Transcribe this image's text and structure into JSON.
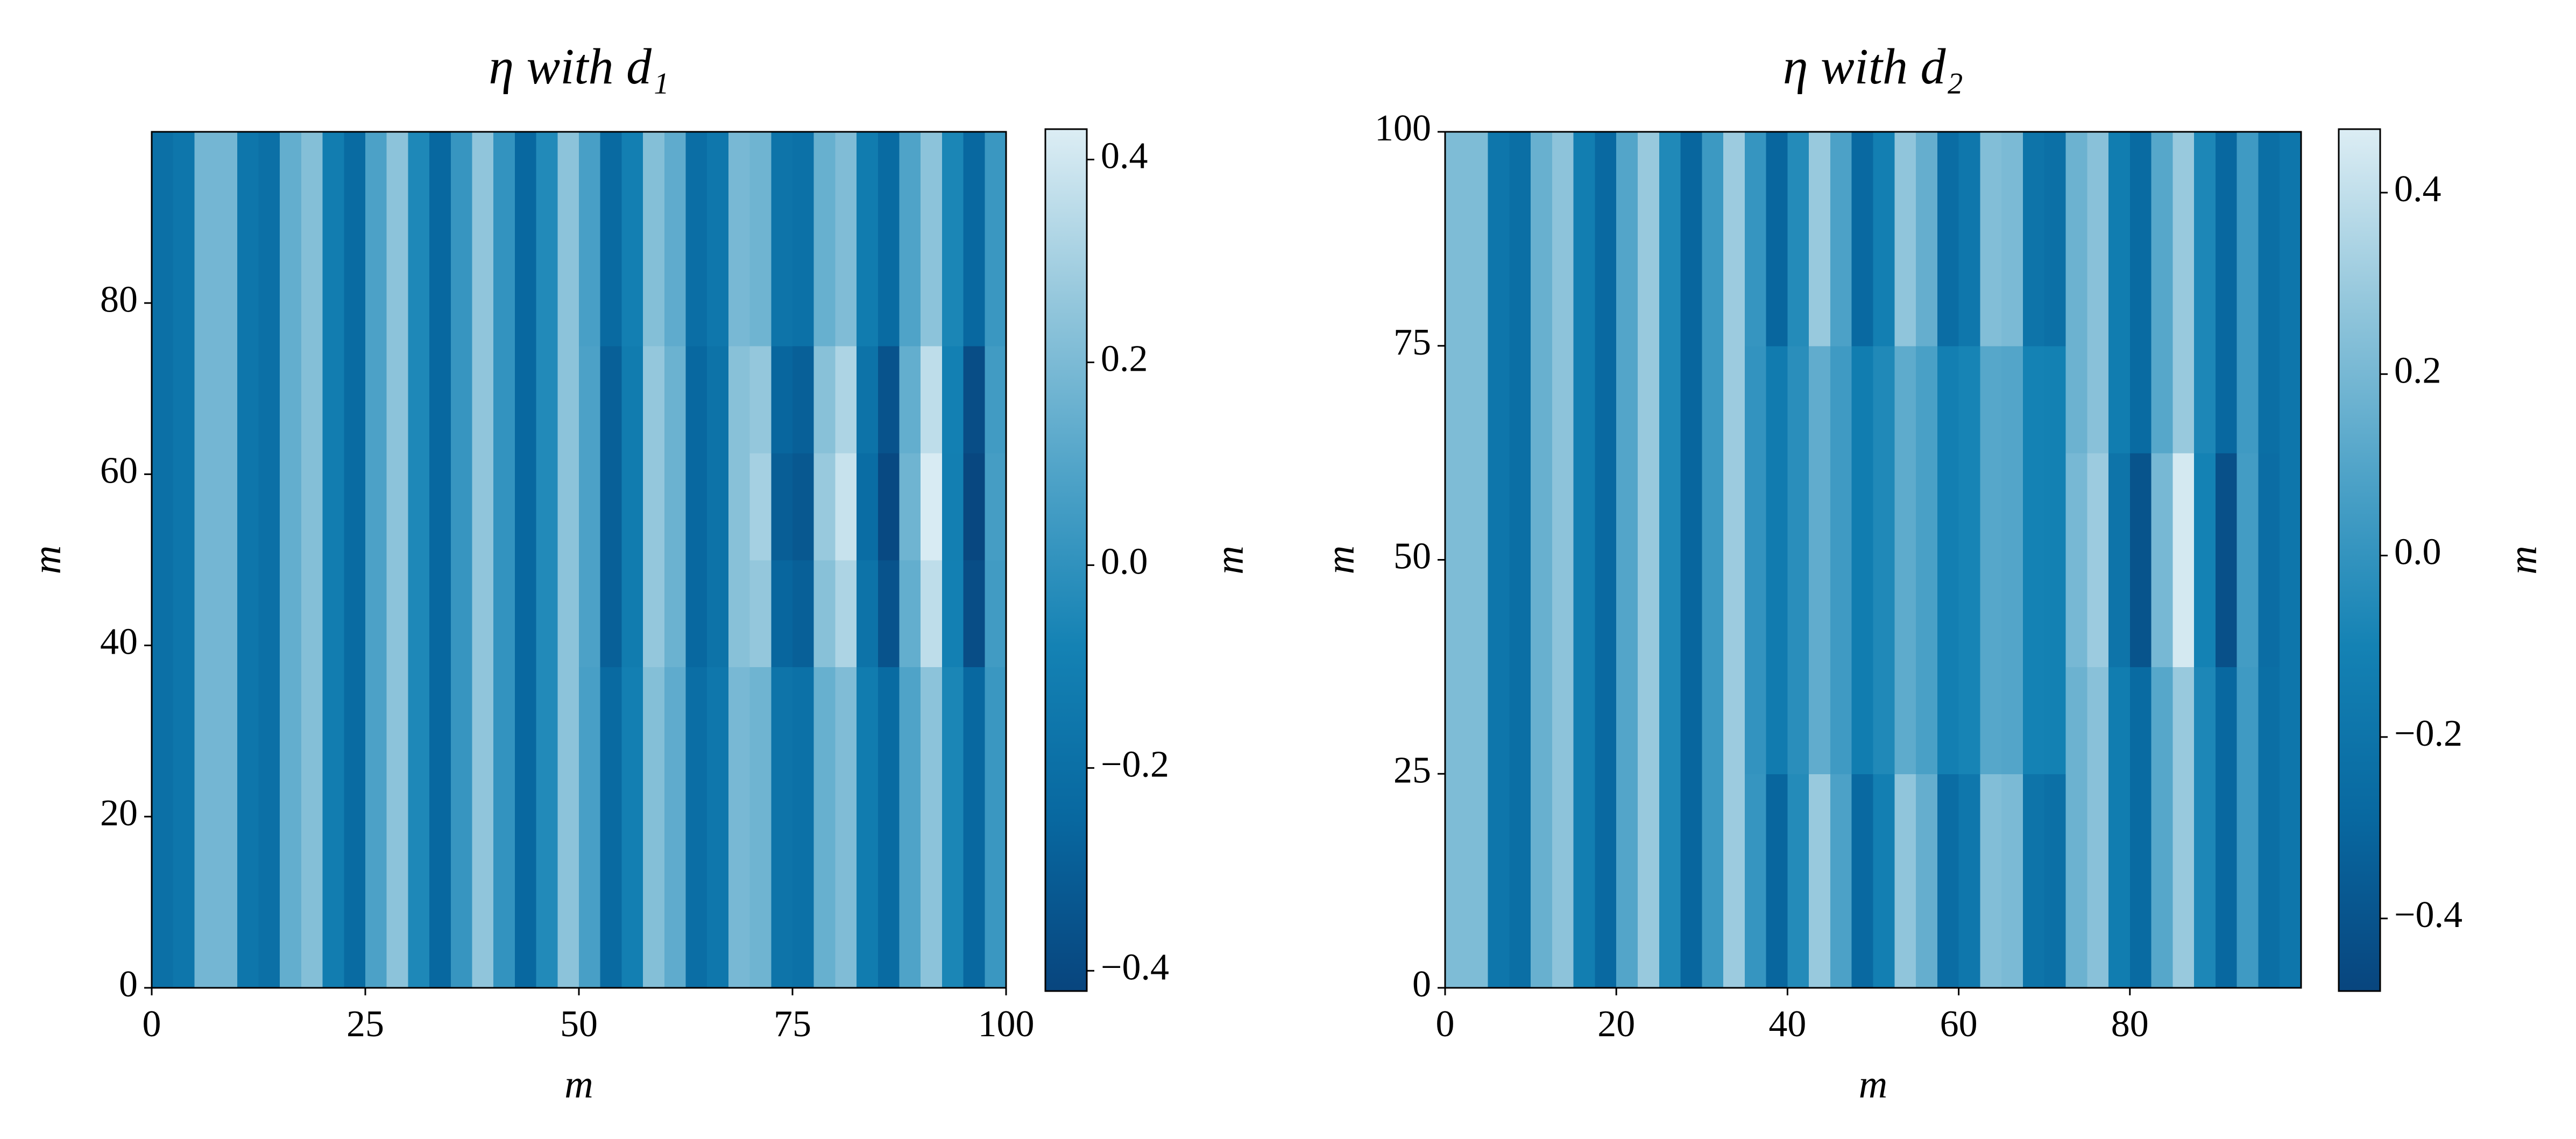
{
  "chart_data": [
    {
      "type": "heatmap",
      "title": "η with d₁",
      "xlabel": "m",
      "ylabel": "m",
      "colorbar_label": "m",
      "xlim": [
        0,
        100
      ],
      "ylim": [
        0,
        100
      ],
      "xticks": [
        0,
        25,
        50,
        75,
        100
      ],
      "yticks": [
        0,
        20,
        40,
        60,
        80
      ],
      "clim": [
        -0.42,
        0.43
      ],
      "cticks": [
        {
          "value": -0.4,
          "label": "−0.4"
        },
        {
          "value": -0.2,
          "label": "−0.2"
        },
        {
          "value": 0,
          "label": "0.0"
        },
        0.2,
        0.4
      ],
      "colors": [
        "#08457e",
        "#0868a0",
        "#1482b4",
        "#4fa3c8",
        "#94c7dc",
        "#dcedf4"
      ],
      "z": [
        [
          -0.2,
          -0.16,
          0.18,
          0.18,
          -0.16,
          -0.2,
          0.14,
          0.22,
          -0.11,
          -0.23,
          0.08,
          0.24,
          -0.05,
          -0.25,
          0.02,
          0.25,
          0.01,
          -0.25,
          -0.04,
          0.24,
          0.07,
          -0.24,
          -0.1,
          0.22,
          0.13,
          -0.21,
          -0.15,
          0.19,
          0.17,
          -0.17,
          -0.19,
          0.15,
          0.21,
          -0.12,
          -0.23,
          0.09,
          0.24,
          -0.06,
          -0.25,
          0.03
        ],
        [
          -0.2,
          -0.16,
          0.18,
          0.18,
          -0.16,
          -0.2,
          0.14,
          0.22,
          -0.11,
          -0.23,
          0.08,
          0.24,
          -0.05,
          -0.25,
          0.02,
          0.25,
          0.01,
          -0.25,
          -0.04,
          0.24,
          0.07,
          -0.24,
          -0.1,
          0.22,
          0.13,
          -0.21,
          -0.15,
          0.19,
          0.17,
          -0.17,
          -0.19,
          0.15,
          0.21,
          -0.12,
          -0.23,
          0.09,
          0.24,
          -0.06,
          -0.25,
          0.03
        ],
        [
          -0.2,
          -0.16,
          0.18,
          0.18,
          -0.16,
          -0.2,
          0.14,
          0.22,
          -0.11,
          -0.23,
          0.08,
          0.24,
          -0.05,
          -0.25,
          0.02,
          0.25,
          0.01,
          -0.25,
          -0.04,
          0.24,
          0.07,
          -0.24,
          -0.1,
          0.22,
          0.13,
          -0.21,
          -0.15,
          0.19,
          0.17,
          -0.17,
          -0.19,
          0.15,
          0.21,
          -0.12,
          -0.23,
          0.09,
          0.24,
          -0.06,
          -0.25,
          0.03
        ],
        [
          -0.2,
          -0.16,
          0.18,
          0.18,
          -0.16,
          -0.2,
          0.14,
          0.22,
          -0.11,
          -0.23,
          0.08,
          0.24,
          -0.05,
          -0.25,
          0.02,
          0.25,
          0.01,
          -0.25,
          -0.04,
          0.24,
          0.08,
          -0.29,
          -0.12,
          0.26,
          0.16,
          -0.25,
          -0.18,
          0.23,
          0.26,
          -0.26,
          -0.29,
          0.23,
          0.32,
          -0.18,
          -0.35,
          0.14,
          0.36,
          -0.09,
          -0.38,
          0.05
        ],
        [
          -0.2,
          -0.16,
          0.18,
          0.18,
          -0.16,
          -0.2,
          0.14,
          0.22,
          -0.11,
          -0.23,
          0.08,
          0.24,
          -0.05,
          -0.25,
          0.02,
          0.25,
          0.01,
          -0.25,
          -0.04,
          0.24,
          0.08,
          -0.29,
          -0.12,
          0.26,
          0.16,
          -0.25,
          -0.18,
          0.23,
          0.3,
          -0.3,
          -0.33,
          0.27,
          0.38,
          -0.22,
          -0.4,
          0.17,
          0.42,
          -0.1,
          -0.41,
          0.06
        ],
        [
          -0.2,
          -0.16,
          0.18,
          0.18,
          -0.16,
          -0.2,
          0.14,
          0.22,
          -0.11,
          -0.23,
          0.08,
          0.24,
          -0.05,
          -0.25,
          0.02,
          0.25,
          0.01,
          -0.25,
          -0.04,
          0.24,
          0.08,
          -0.29,
          -0.12,
          0.26,
          0.16,
          -0.25,
          -0.18,
          0.23,
          0.26,
          -0.26,
          -0.29,
          0.23,
          0.32,
          -0.18,
          -0.35,
          0.14,
          0.36,
          -0.09,
          -0.38,
          0.05
        ],
        [
          -0.2,
          -0.16,
          0.18,
          0.18,
          -0.16,
          -0.2,
          0.14,
          0.22,
          -0.11,
          -0.23,
          0.08,
          0.24,
          -0.05,
          -0.25,
          0.02,
          0.25,
          0.01,
          -0.25,
          -0.04,
          0.24,
          0.07,
          -0.24,
          -0.1,
          0.22,
          0.13,
          -0.21,
          -0.15,
          0.19,
          0.17,
          -0.17,
          -0.19,
          0.15,
          0.21,
          -0.12,
          -0.23,
          0.09,
          0.24,
          -0.06,
          -0.25,
          0.03
        ],
        [
          -0.2,
          -0.16,
          0.18,
          0.18,
          -0.16,
          -0.2,
          0.14,
          0.22,
          -0.11,
          -0.23,
          0.08,
          0.24,
          -0.05,
          -0.25,
          0.02,
          0.25,
          0.01,
          -0.25,
          -0.04,
          0.24,
          0.07,
          -0.24,
          -0.1,
          0.22,
          0.13,
          -0.21,
          -0.15,
          0.19,
          0.17,
          -0.17,
          -0.19,
          0.15,
          0.21,
          -0.12,
          -0.23,
          0.09,
          0.24,
          -0.06,
          -0.25,
          0.03
        ]
      ]
    },
    {
      "type": "heatmap",
      "title": "η with d₂",
      "xlabel": "m",
      "ylabel": "m",
      "colorbar_label": "m",
      "xlim": [
        0,
        100
      ],
      "ylim": [
        0,
        100
      ],
      "xticks": [
        0,
        20,
        40,
        60,
        80
      ],
      "yticks": [
        0,
        25,
        50,
        75,
        100
      ],
      "clim": [
        -0.48,
        0.47
      ],
      "cticks": [
        {
          "value": -0.4,
          "label": "−0.4"
        },
        {
          "value": -0.2,
          "label": "−0.2"
        },
        {
          "value": 0,
          "label": "0.0"
        },
        0.2,
        0.4
      ],
      "colors": [
        "#08457e",
        "#0868a0",
        "#1482b4",
        "#4fa3c8",
        "#94c7dc",
        "#dcedf4"
      ],
      "z": [
        [
          0.22,
          0.22,
          -0.19,
          -0.24,
          0.16,
          0.26,
          -0.13,
          -0.28,
          0.1,
          0.29,
          -0.06,
          -0.3,
          0.03,
          0.3,
          0.01,
          -0.3,
          -0.05,
          0.29,
          0.08,
          -0.28,
          -0.12,
          0.27,
          0.15,
          -0.25,
          -0.18,
          0.23,
          0.21,
          -0.2,
          -0.23,
          0.17,
          0.25,
          -0.14,
          -0.27,
          0.11,
          0.29,
          -0.07,
          -0.29,
          0.04,
          -0.24,
          -0.19
        ],
        [
          0.22,
          0.22,
          -0.19,
          -0.24,
          0.16,
          0.26,
          -0.13,
          -0.28,
          0.1,
          0.29,
          -0.06,
          -0.3,
          0.03,
          0.3,
          0.01,
          -0.3,
          -0.05,
          0.29,
          0.08,
          -0.28,
          -0.12,
          0.27,
          0.15,
          -0.25,
          -0.18,
          0.23,
          0.21,
          -0.2,
          -0.23,
          0.17,
          0.25,
          -0.14,
          -0.27,
          0.11,
          0.29,
          -0.07,
          -0.29,
          0.04,
          -0.24,
          -0.19
        ],
        [
          0.22,
          0.22,
          -0.19,
          -0.24,
          0.16,
          0.26,
          -0.13,
          -0.28,
          0.1,
          0.29,
          -0.06,
          -0.3,
          0.03,
          0.3,
          0,
          -0.15,
          -0.03,
          0.14,
          0.04,
          -0.14,
          -0.06,
          0.13,
          0.07,
          -0.12,
          -0.09,
          0.11,
          0.1,
          -0.1,
          -0.11,
          0.17,
          0.25,
          -0.14,
          -0.27,
          0.11,
          0.29,
          -0.07,
          -0.29,
          0.04,
          -0.24,
          -0.19
        ],
        [
          0.22,
          0.22,
          -0.19,
          -0.24,
          0.16,
          0.26,
          -0.13,
          -0.28,
          0.1,
          0.29,
          -0.06,
          -0.3,
          0.03,
          0.3,
          0,
          -0.15,
          -0.03,
          0.14,
          0.04,
          -0.14,
          -0.06,
          0.13,
          0.07,
          -0.12,
          -0.09,
          0.11,
          0.1,
          -0.1,
          -0.11,
          0.2,
          0.3,
          -0.2,
          -0.4,
          0.2,
          0.45,
          -0.1,
          -0.42,
          0.05,
          -0.25,
          -0.19
        ],
        [
          0.22,
          0.22,
          -0.19,
          -0.24,
          0.16,
          0.26,
          -0.13,
          -0.28,
          0.1,
          0.29,
          -0.06,
          -0.3,
          0.03,
          0.3,
          0,
          -0.15,
          -0.03,
          0.14,
          0.04,
          -0.14,
          -0.06,
          0.13,
          0.07,
          -0.12,
          -0.09,
          0.11,
          0.1,
          -0.1,
          -0.11,
          0.2,
          0.3,
          -0.2,
          -0.4,
          0.2,
          0.45,
          -0.1,
          -0.42,
          0.05,
          -0.25,
          -0.19
        ],
        [
          0.22,
          0.22,
          -0.19,
          -0.24,
          0.16,
          0.26,
          -0.13,
          -0.28,
          0.1,
          0.29,
          -0.06,
          -0.3,
          0.03,
          0.3,
          0,
          -0.15,
          -0.03,
          0.14,
          0.04,
          -0.14,
          -0.06,
          0.13,
          0.07,
          -0.12,
          -0.09,
          0.11,
          0.1,
          -0.1,
          -0.11,
          0.17,
          0.25,
          -0.14,
          -0.27,
          0.11,
          0.29,
          -0.07,
          -0.29,
          0.04,
          -0.24,
          -0.19
        ],
        [
          0.22,
          0.22,
          -0.19,
          -0.24,
          0.16,
          0.26,
          -0.13,
          -0.28,
          0.1,
          0.29,
          -0.06,
          -0.3,
          0.03,
          0.3,
          0.01,
          -0.3,
          -0.05,
          0.29,
          0.08,
          -0.28,
          -0.12,
          0.27,
          0.15,
          -0.25,
          -0.18,
          0.23,
          0.21,
          -0.2,
          -0.23,
          0.17,
          0.25,
          -0.14,
          -0.27,
          0.11,
          0.29,
          -0.07,
          -0.29,
          0.04,
          -0.24,
          -0.19
        ],
        [
          0.22,
          0.22,
          -0.19,
          -0.24,
          0.16,
          0.26,
          -0.13,
          -0.28,
          0.1,
          0.29,
          -0.06,
          -0.3,
          0.03,
          0.3,
          0.01,
          -0.3,
          -0.05,
          0.29,
          0.08,
          -0.28,
          -0.12,
          0.27,
          0.15,
          -0.25,
          -0.18,
          0.23,
          0.21,
          -0.2,
          -0.23,
          0.17,
          0.25,
          -0.14,
          -0.27,
          0.11,
          0.29,
          -0.07,
          -0.29,
          0.04,
          -0.24,
          -0.19
        ]
      ]
    }
  ]
}
